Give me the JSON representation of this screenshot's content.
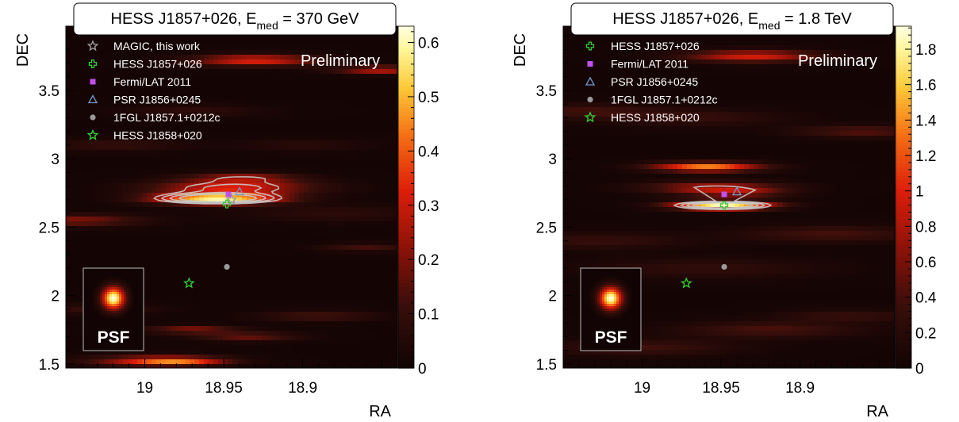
{
  "chart_data": [
    {
      "type": "heatmap",
      "title": "HESS J1857+026, E",
      "title_sub": "med",
      "title_tail": " = 370 GeV",
      "xlabel": "RA",
      "ylabel": "DEC",
      "x_ticks": [
        "19",
        "18.95",
        "18.9"
      ],
      "y_ticks": [
        "1.5",
        "2",
        "2.5",
        "3",
        "3.5"
      ],
      "xlim": [
        19.05,
        18.84
      ],
      "ylim": [
        1.47,
        3.97
      ],
      "watermark": "Preliminary",
      "inset_label": "PSF",
      "colorbar": {
        "ticks": [
          "0",
          "0.1",
          "0.2",
          "0.3",
          "0.4",
          "0.5",
          "0.6"
        ],
        "range": [
          0,
          0.63
        ]
      },
      "legend": [
        {
          "label": "MAGIC, this work",
          "marker": "star",
          "color": "#9a9a9a"
        },
        {
          "label": "HESS J1857+026",
          "marker": "cross",
          "color": "#33cc33"
        },
        {
          "label": "Fermi/LAT 2011",
          "marker": "square",
          "color": "#c050f0"
        },
        {
          "label": "PSR J1856+0245",
          "marker": "triangle",
          "color": "#7799cc"
        },
        {
          "label": "1FGL J1857.1+0212c",
          "marker": "circle",
          "color": "#9a9a9a"
        },
        {
          "label": "HESS J1858+020",
          "marker": "star",
          "color": "#33cc33"
        }
      ],
      "sources": [
        {
          "name": "MAGIC, this work",
          "ra": 18.945,
          "dec": 2.7,
          "marker": "star",
          "color": "#9a9a9a"
        },
        {
          "name": "HESS J1857+026",
          "ra": 18.948,
          "dec": 2.67,
          "marker": "cross",
          "color": "#33cc33"
        },
        {
          "name": "Fermi/LAT 2011",
          "ra": 18.947,
          "dec": 2.74,
          "marker": "square",
          "color": "#c050f0"
        },
        {
          "name": "PSR J1856+0245",
          "ra": 18.94,
          "dec": 2.76,
          "marker": "triangle",
          "color": "#7799cc"
        },
        {
          "name": "1FGL J1857.1+0212c",
          "ra": 18.948,
          "dec": 2.21,
          "marker": "circle",
          "color": "#9a9a9a"
        },
        {
          "name": "HESS J1858+020",
          "ra": 18.972,
          "dec": 2.09,
          "marker": "star",
          "color": "#33cc33"
        }
      ],
      "blobs": [
        {
          "ra": 18.954,
          "dec": 2.71,
          "sigma": 0.028,
          "amp": 0.62
        },
        {
          "ra": 18.944,
          "dec": 2.79,
          "sigma": 0.035,
          "amp": 0.32
        },
        {
          "ra": 18.938,
          "dec": 2.86,
          "sigma": 0.025,
          "amp": 0.22
        },
        {
          "ra": 18.93,
          "dec": 3.72,
          "sigma": 0.028,
          "amp": 0.33
        },
        {
          "ra": 18.85,
          "dec": 3.65,
          "sigma": 0.02,
          "amp": 0.28
        },
        {
          "ra": 19.045,
          "dec": 2.55,
          "sigma": 0.03,
          "amp": 0.2
        },
        {
          "ra": 18.97,
          "dec": 1.75,
          "sigma": 0.02,
          "amp": 0.2
        },
        {
          "ra": 18.995,
          "dec": 1.52,
          "sigma": 0.028,
          "amp": 0.28
        },
        {
          "ra": 18.975,
          "dec": 1.52,
          "sigma": 0.02,
          "amp": 0.22
        },
        {
          "ra": 18.935,
          "dec": 1.7,
          "sigma": 0.022,
          "amp": 0.17
        },
        {
          "ra": 18.89,
          "dec": 1.85,
          "sigma": 0.025,
          "amp": 0.13
        },
        {
          "ra": 18.86,
          "dec": 2.35,
          "sigma": 0.02,
          "amp": 0.12
        },
        {
          "ra": 19.02,
          "dec": 3.1,
          "sigma": 0.03,
          "amp": 0.09
        },
        {
          "ra": 18.97,
          "dec": 3.35,
          "sigma": 0.03,
          "amp": 0.08
        },
        {
          "ra": 18.9,
          "dec": 3.1,
          "sigma": 0.03,
          "amp": 0.06
        },
        {
          "ra": 18.88,
          "dec": 2.6,
          "sigma": 0.04,
          "amp": 0.07
        },
        {
          "ra": 19.03,
          "dec": 1.9,
          "sigma": 0.025,
          "amp": 0.1
        }
      ],
      "contour_levels": [
        0.24,
        0.3,
        0.37,
        0.45
      ]
    },
    {
      "type": "heatmap",
      "title": "HESS J1857+026, E",
      "title_sub": "med",
      "title_tail": " = 1.8 TeV",
      "xlabel": "RA",
      "ylabel": "DEC",
      "x_ticks": [
        "19",
        "18.95",
        "18.9"
      ],
      "y_ticks": [
        "1.5",
        "2",
        "2.5",
        "3",
        "3.5"
      ],
      "xlim": [
        19.05,
        18.84
      ],
      "ylim": [
        1.47,
        3.97
      ],
      "watermark": "Preliminary",
      "inset_label": "PSF",
      "colorbar": {
        "ticks": [
          "0",
          "0.2",
          "0.4",
          "0.6",
          "0.8",
          "1",
          "1.2",
          "1.4",
          "1.6",
          "1.8"
        ],
        "range": [
          0,
          1.93
        ]
      },
      "legend": [
        {
          "label": "HESS J1857+026",
          "marker": "cross",
          "color": "#33cc33"
        },
        {
          "label": "Fermi/LAT 2011",
          "marker": "square",
          "color": "#c050f0"
        },
        {
          "label": "PSR J1856+0245",
          "marker": "triangle",
          "color": "#7799cc"
        },
        {
          "label": "1FGL J1857.1+0212c",
          "marker": "circle",
          "color": "#9a9a9a"
        },
        {
          "label": "HESS J1858+020",
          "marker": "star",
          "color": "#33cc33"
        }
      ],
      "sources": [
        {
          "name": "HESS J1857+026",
          "ra": 18.948,
          "dec": 2.66,
          "marker": "cross",
          "color": "#33cc33"
        },
        {
          "name": "Fermi/LAT 2011",
          "ra": 18.948,
          "dec": 2.74,
          "marker": "square",
          "color": "#c050f0"
        },
        {
          "name": "PSR J1856+0245",
          "ra": 18.94,
          "dec": 2.76,
          "marker": "triangle",
          "color": "#7799cc"
        },
        {
          "name": "1FGL J1857.1+0212c",
          "ra": 18.948,
          "dec": 2.21,
          "marker": "circle",
          "color": "#9a9a9a"
        },
        {
          "name": "HESS J1858+020",
          "ra": 18.972,
          "dec": 2.09,
          "marker": "star",
          "color": "#33cc33"
        }
      ],
      "blobs": [
        {
          "ra": 18.949,
          "dec": 2.66,
          "sigma": 0.022,
          "amp": 1.9
        },
        {
          "ra": 18.959,
          "dec": 2.94,
          "sigma": 0.024,
          "amp": 1.35
        },
        {
          "ra": 18.954,
          "dec": 2.79,
          "sigma": 0.03,
          "amp": 0.75
        },
        {
          "ra": 18.94,
          "dec": 2.75,
          "sigma": 0.022,
          "amp": 0.55
        },
        {
          "ra": 18.93,
          "dec": 3.75,
          "sigma": 0.03,
          "amp": 0.95
        },
        {
          "ra": 18.86,
          "dec": 3.2,
          "sigma": 0.03,
          "amp": 0.45
        },
        {
          "ra": 18.97,
          "dec": 3.3,
          "sigma": 0.04,
          "amp": 0.3
        },
        {
          "ra": 19.04,
          "dec": 3.35,
          "sigma": 0.035,
          "amp": 0.35
        },
        {
          "ra": 18.88,
          "dec": 2.45,
          "sigma": 0.04,
          "amp": 0.38
        },
        {
          "ra": 18.92,
          "dec": 1.75,
          "sigma": 0.04,
          "amp": 0.4
        },
        {
          "ra": 18.87,
          "dec": 1.85,
          "sigma": 0.03,
          "amp": 0.3
        },
        {
          "ra": 19.0,
          "dec": 1.62,
          "sigma": 0.04,
          "amp": 0.35
        },
        {
          "ra": 19.03,
          "dec": 2.4,
          "sigma": 0.04,
          "amp": 0.3
        },
        {
          "ra": 18.96,
          "dec": 2.2,
          "sigma": 0.05,
          "amp": 0.25
        }
      ],
      "contour_levels": [
        0.75,
        0.95,
        1.15,
        1.35
      ]
    }
  ]
}
